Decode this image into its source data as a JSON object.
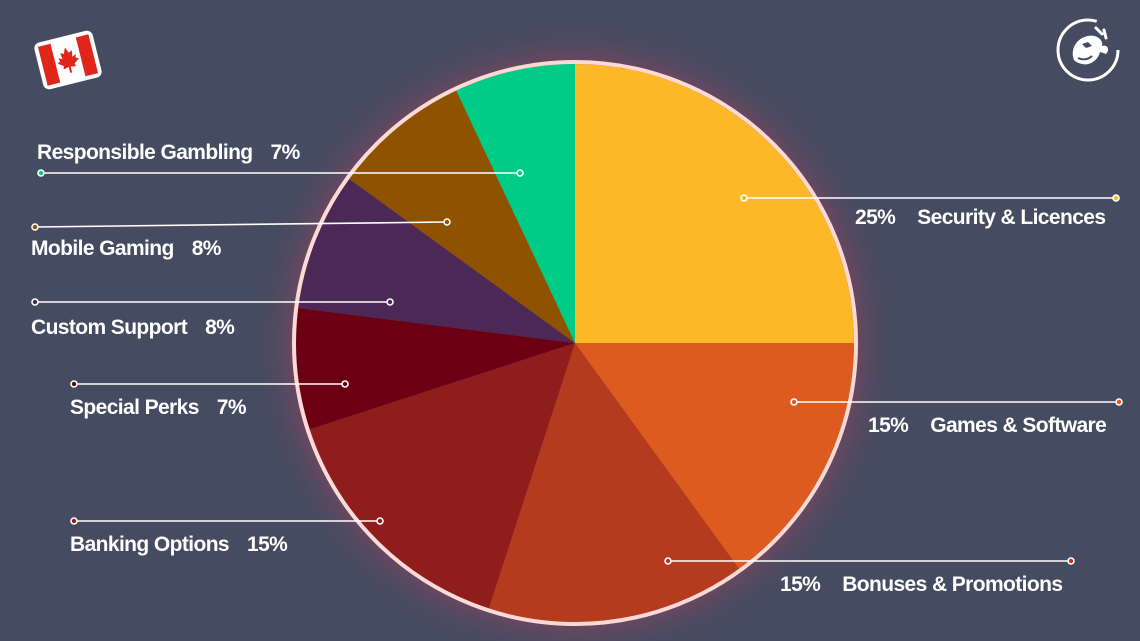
{
  "chart_data": {
    "type": "pie",
    "start": "12 o'clock",
    "direction": "clockwise",
    "slices": [
      {
        "label": "Security & Licences",
        "value": 25,
        "pct_text": "25%",
        "color": "#fdb827",
        "label_side": "right"
      },
      {
        "label": "Games & Software",
        "value": 15,
        "pct_text": "15%",
        "color": "#dd5b1e",
        "label_side": "right"
      },
      {
        "label": "Bonuses & Promotions",
        "value": 15,
        "pct_text": "15%",
        "color": "#b53b1e",
        "label_side": "right"
      },
      {
        "label": "Banking Options",
        "value": 15,
        "pct_text": "15%",
        "color": "#8e1d1c",
        "label_side": "left"
      },
      {
        "label": "Special Perks",
        "value": 7,
        "pct_text": "7%",
        "color": "#6c0014",
        "label_side": "left"
      },
      {
        "label": "Custom Support",
        "value": 8,
        "pct_text": "8%",
        "color": "#4b2855",
        "label_side": "left"
      },
      {
        "label": "Mobile Gaming",
        "value": 8,
        "pct_text": "8%",
        "color": "#8f5300",
        "label_side": "left"
      },
      {
        "label": "Responsible Gambling",
        "value": 7,
        "pct_text": "7%",
        "color": "#00cc88",
        "label_side": "left"
      }
    ]
  },
  "colors": {
    "background": "#454b60",
    "pie_border": "#fdd9d6",
    "glow": "#e0486a",
    "leader_line": "#ffffff"
  },
  "icons": {
    "flag": "canada-flag-icon",
    "logo": "dragon-logo-icon"
  }
}
